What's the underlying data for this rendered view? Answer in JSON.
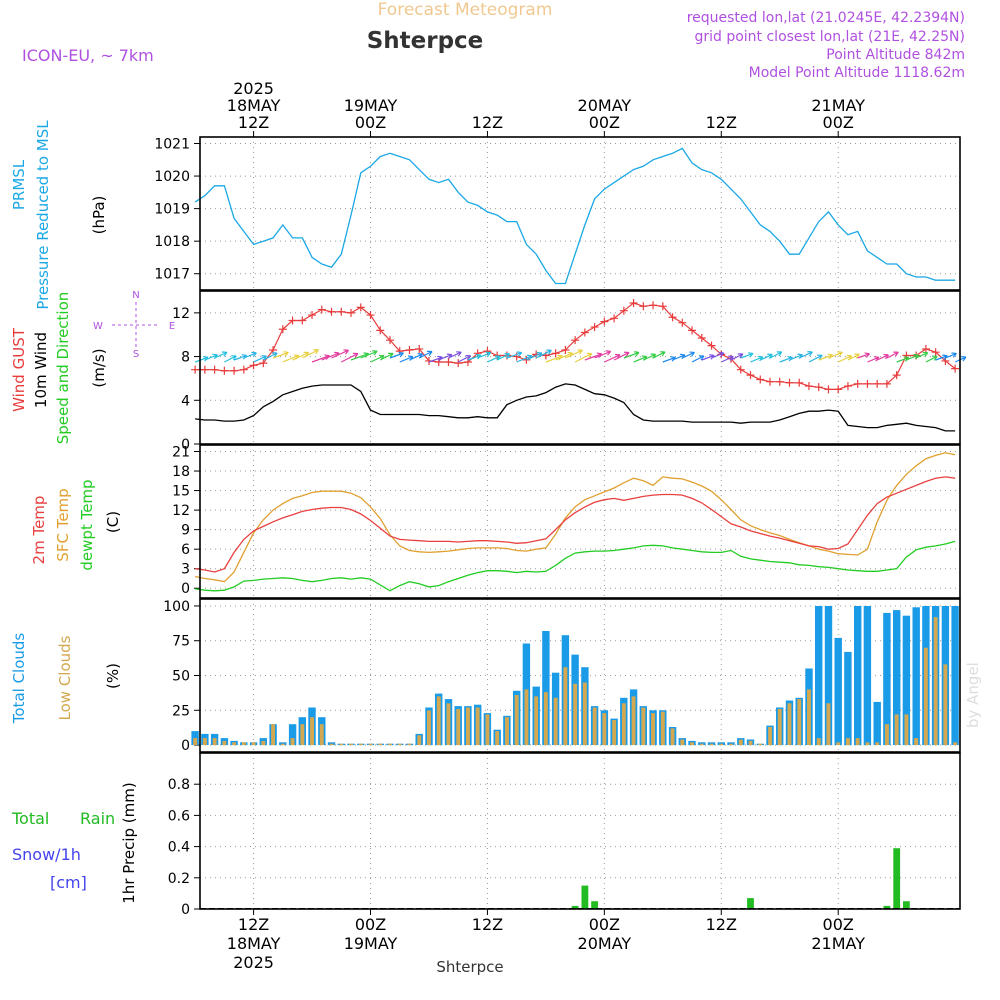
{
  "header": {
    "title": "Forecast Meteogram",
    "location": "Shterpce",
    "model": "ICON-EU, ~ 7km",
    "requested": "requested lon,lat (21.0245E, 42.2394N)",
    "grid_point": "grid point closest lon,lat (21E, 42.25N)",
    "point_altitude": "Point Altitude 842m",
    "model_altitude": "Model Point Altitude 1118.62m",
    "footer_location": "Shterpce",
    "watermark": "by Angel"
  },
  "time_axis": {
    "top_labels": [
      {
        "day_h": 6,
        "lines": [
          "2025",
          "18MAY",
          "12Z"
        ]
      },
      {
        "day_h": 18,
        "lines": [
          "19MAY",
          "00Z"
        ]
      },
      {
        "day_h": 30,
        "lines": [
          "12Z"
        ]
      },
      {
        "day_h": 42,
        "lines": [
          "20MAY",
          "00Z"
        ]
      },
      {
        "day_h": 54,
        "lines": [
          "12Z"
        ]
      },
      {
        "day_h": 66,
        "lines": [
          "21MAY",
          "00Z"
        ]
      }
    ],
    "bottom_labels": [
      {
        "day_h": 6,
        "lines": [
          "12Z",
          "18MAY",
          "2025"
        ]
      },
      {
        "day_h": 18,
        "lines": [
          "00Z",
          "19MAY"
        ]
      },
      {
        "day_h": 30,
        "lines": [
          "12Z"
        ]
      },
      {
        "day_h": 42,
        "lines": [
          "00Z",
          "20MAY"
        ]
      },
      {
        "day_h": 54,
        "lines": [
          "12Z"
        ]
      },
      {
        "day_h": 66,
        "lines": [
          "00Z",
          "21MAY"
        ]
      }
    ],
    "x_start_hour": 0.5,
    "x_end_hour": 78.5
  },
  "panels": {
    "pressure": {
      "labels": [
        "PRMSL",
        "Pressure Reduced to MSL"
      ],
      "unit": "(hPa)",
      "yticks": [
        1017,
        1018,
        1019,
        1020,
        1021
      ],
      "ylim": [
        1016.5,
        1021.2
      ]
    },
    "wind": {
      "labels": [
        "Wind GUST",
        "10m Wind",
        "Speed and Direction"
      ],
      "unit": "(m/s)",
      "compass": {
        "n": "N",
        "s": "S",
        "w": "W",
        "e": "E"
      },
      "yticks": [
        0,
        4,
        8,
        12
      ],
      "ylim": [
        0,
        14
      ]
    },
    "temperature": {
      "labels": [
        "2m Temp",
        "SFC Temp",
        "dewpt Temp"
      ],
      "unit": "(C)",
      "yticks": [
        0,
        3,
        6,
        9,
        12,
        15,
        18,
        21
      ],
      "ylim": [
        -1.5,
        22
      ]
    },
    "clouds": {
      "labels": [
        "Total Clouds",
        "Low Clouds"
      ],
      "unit": "(%)",
      "yticks": [
        0,
        25,
        50,
        75,
        100
      ],
      "ylim": [
        -5,
        105
      ]
    },
    "precip": {
      "labels": [
        "Total",
        "Rain",
        "Snow/1h",
        "[cm]"
      ],
      "ylabel": "1hr Precip (mm)",
      "yticks": [
        0,
        0.2,
        0.4,
        0.6,
        0.8
      ],
      "ylim": [
        0,
        1.0
      ]
    }
  },
  "colors": {
    "pressure": "#1aa8e6",
    "gust": "#e83c3c",
    "wind": "#000000",
    "temp2m": "#e84040",
    "sfc": "#e0a030",
    "dewpt": "#22cc22",
    "total_cloud": "#1a9be8",
    "low_cloud": "#d4a850",
    "rain": "#22bb22",
    "purple": "#b050e0",
    "snow": "#4444ee",
    "title": "#f0c890"
  },
  "chart_data": {
    "type": "line",
    "hours": [
      0,
      1,
      2,
      3,
      4,
      5,
      6,
      7,
      8,
      9,
      10,
      11,
      12,
      13,
      14,
      15,
      16,
      17,
      18,
      19,
      20,
      21,
      22,
      23,
      24,
      25,
      26,
      27,
      28,
      29,
      30,
      31,
      32,
      33,
      34,
      35,
      36,
      37,
      38,
      39,
      40,
      41,
      42,
      43,
      44,
      45,
      46,
      47,
      48,
      49,
      50,
      51,
      52,
      53,
      54,
      55,
      56,
      57,
      58,
      59,
      60,
      61,
      62,
      63,
      64,
      65,
      66,
      67,
      68,
      69,
      70,
      71,
      72,
      73,
      74,
      75,
      76,
      77,
      78
    ],
    "pressure_hpa": [
      1019.2,
      1019.4,
      1019.7,
      1019.7,
      1018.7,
      1018.3,
      1017.9,
      1018.0,
      1018.1,
      1018.5,
      1018.1,
      1018.1,
      1017.5,
      1017.3,
      1017.2,
      1017.6,
      1018.8,
      1020.1,
      1020.3,
      1020.6,
      1020.7,
      1020.6,
      1020.5,
      1020.2,
      1019.9,
      1019.8,
      1019.9,
      1019.5,
      1019.2,
      1019.1,
      1018.9,
      1018.8,
      1018.6,
      1018.6,
      1017.9,
      1017.6,
      1017.1,
      1016.7,
      1016.7,
      1017.6,
      1018.5,
      1019.3,
      1019.6,
      1019.8,
      1020.0,
      1020.2,
      1020.3,
      1020.5,
      1020.6,
      1020.7,
      1020.85,
      1020.4,
      1020.2,
      1020.1,
      1019.9,
      1019.6,
      1019.3,
      1018.9,
      1018.5,
      1018.3,
      1018.0,
      1017.6,
      1017.6,
      1018.1,
      1018.6,
      1018.9,
      1018.5,
      1018.2,
      1018.3,
      1017.7,
      1017.5,
      1017.3,
      1017.3,
      1017.0,
      1016.9,
      1016.9,
      1016.8,
      1016.8,
      1016.8
    ],
    "gust_ms": [
      6.8,
      6.8,
      6.8,
      6.7,
      6.7,
      6.8,
      7.2,
      7.4,
      8.6,
      10.5,
      11.3,
      11.3,
      11.8,
      12.3,
      12.1,
      12.1,
      12.0,
      12.5,
      11.8,
      10.4,
      9.5,
      8.5,
      8.6,
      8.7,
      7.6,
      7.5,
      7.5,
      7.4,
      7.5,
      8.3,
      8.5,
      8.1,
      8.1,
      8.0,
      7.7,
      8.2,
      8.1,
      8.3,
      8.6,
      9.5,
      10.2,
      10.7,
      11.2,
      11.5,
      12.2,
      12.9,
      12.6,
      12.7,
      12.6,
      11.6,
      11.1,
      10.4,
      9.7,
      9.0,
      8.2,
      7.8,
      6.8,
      6.3,
      5.9,
      5.7,
      5.7,
      5.6,
      5.6,
      5.3,
      5.2,
      5.0,
      5.0,
      5.3,
      5.5,
      5.5,
      5.5,
      5.5,
      6.3,
      8.1,
      8.1,
      8.7,
      8.4,
      7.6,
      6.9
    ],
    "wind_ms": [
      2.3,
      2.2,
      2.2,
      2.1,
      2.1,
      2.2,
      2.6,
      3.4,
      3.9,
      4.5,
      4.8,
      5.1,
      5.3,
      5.4,
      5.4,
      5.4,
      5.4,
      4.8,
      3.1,
      2.7,
      2.7,
      2.7,
      2.7,
      2.7,
      2.6,
      2.6,
      2.5,
      2.4,
      2.4,
      2.5,
      2.4,
      2.4,
      3.6,
      4.0,
      4.3,
      4.4,
      4.7,
      5.2,
      5.5,
      5.4,
      5.0,
      4.6,
      4.5,
      4.2,
      3.8,
      2.7,
      2.2,
      2.1,
      2.1,
      2.1,
      2.1,
      2.0,
      2.0,
      2.0,
      2.0,
      2.0,
      1.9,
      2.0,
      2.0,
      2.0,
      2.2,
      2.5,
      2.8,
      3.0,
      3.0,
      3.1,
      3.0,
      1.7,
      1.6,
      1.5,
      1.5,
      1.7,
      1.8,
      1.9,
      1.7,
      1.6,
      1.5,
      1.2,
      1.2
    ],
    "temp2m_c": [
      3.0,
      2.8,
      2.5,
      3.0,
      5.5,
      7.5,
      8.8,
      9.5,
      10.2,
      10.8,
      11.3,
      11.8,
      12.1,
      12.3,
      12.4,
      12.4,
      12.1,
      11.4,
      10.4,
      9.2,
      8.0,
      7.5,
      7.4,
      7.3,
      7.2,
      7.2,
      7.2,
      7.1,
      7.2,
      7.3,
      7.3,
      7.2,
      7.1,
      6.9,
      7.0,
      7.3,
      7.6,
      9.0,
      10.5,
      11.6,
      12.5,
      13.2,
      13.6,
      13.8,
      13.5,
      13.8,
      14.1,
      14.3,
      14.4,
      14.4,
      14.3,
      13.8,
      13.1,
      12.1,
      11.0,
      9.9,
      9.4,
      8.8,
      8.4,
      8.0,
      7.7,
      7.3,
      6.9,
      6.5,
      6.4,
      6.0,
      6.1,
      6.8,
      9.0,
      11.2,
      13.0,
      14.0,
      14.6,
      15.2,
      15.8,
      16.4,
      16.9,
      17.1,
      16.9
    ],
    "sfc_c": [
      1.8,
      1.5,
      1.3,
      1.0,
      2.5,
      5.5,
      8.5,
      10.5,
      12.0,
      13.0,
      13.8,
      14.2,
      14.7,
      14.9,
      14.9,
      14.9,
      14.6,
      13.9,
      12.5,
      10.7,
      8.2,
      6.5,
      5.8,
      5.6,
      5.5,
      5.6,
      5.7,
      5.9,
      6.1,
      6.2,
      6.2,
      6.2,
      6.1,
      5.8,
      5.7,
      6.0,
      6.2,
      8.3,
      10.8,
      12.5,
      13.6,
      14.2,
      14.8,
      15.4,
      16.2,
      16.9,
      16.5,
      15.8,
      17.1,
      16.9,
      16.8,
      16.3,
      15.7,
      14.9,
      13.6,
      12.1,
      10.5,
      9.6,
      9.0,
      8.5,
      8.1,
      7.5,
      7.0,
      6.5,
      6.0,
      5.7,
      5.3,
      5.2,
      5.1,
      6.0,
      10.2,
      13.5,
      15.8,
      17.5,
      18.8,
      19.9,
      20.4,
      20.8,
      20.5
    ],
    "dewpt_c": [
      -0.1,
      -0.3,
      -0.4,
      -0.3,
      0.2,
      1.1,
      1.2,
      1.4,
      1.5,
      1.6,
      1.5,
      1.2,
      1.0,
      1.2,
      1.5,
      1.6,
      1.4,
      1.6,
      1.4,
      0.5,
      -0.4,
      0.4,
      1.0,
      0.7,
      0.2,
      0.4,
      1.0,
      1.5,
      2.0,
      2.4,
      2.7,
      2.7,
      2.6,
      2.4,
      2.6,
      2.5,
      2.6,
      3.5,
      4.6,
      5.4,
      5.6,
      5.7,
      5.7,
      5.8,
      6.0,
      6.2,
      6.5,
      6.6,
      6.5,
      6.2,
      6.0,
      5.8,
      5.6,
      5.5,
      5.5,
      5.8,
      4.9,
      4.5,
      4.3,
      4.1,
      4.0,
      3.9,
      3.6,
      3.5,
      3.3,
      3.2,
      3.0,
      2.8,
      2.7,
      2.6,
      2.6,
      2.8,
      3.0,
      4.8,
      5.9,
      6.3,
      6.5,
      6.8,
      7.2
    ],
    "total_cloud_pct": [
      10,
      8,
      8,
      5,
      3,
      2,
      2,
      5,
      15,
      2,
      15,
      20,
      27,
      20,
      2,
      1,
      1,
      1,
      1,
      1,
      1,
      1,
      1,
      8,
      27,
      37,
      33,
      28,
      28,
      29,
      23,
      11,
      21,
      39,
      73,
      42,
      82,
      52,
      79,
      65,
      56,
      28,
      25,
      19,
      34,
      40,
      28,
      25,
      25,
      13,
      5,
      3,
      2,
      2,
      2,
      2,
      5,
      4,
      1,
      14,
      27,
      32,
      34,
      55,
      100,
      100,
      77,
      67,
      100,
      100,
      31,
      95,
      97,
      93,
      99,
      100,
      100,
      100,
      100
    ],
    "low_cloud_pct": [
      5,
      5,
      5,
      3,
      2,
      2,
      2,
      3,
      15,
      1,
      5,
      15,
      20,
      15,
      1,
      1,
      1,
      1,
      1,
      1,
      1,
      1,
      1,
      7,
      25,
      35,
      30,
      26,
      27,
      27,
      22,
      10,
      20,
      36,
      40,
      35,
      38,
      34,
      56,
      44,
      45,
      27,
      23,
      18,
      30,
      35,
      27,
      23,
      24,
      12,
      4,
      2,
      1,
      1,
      1,
      1,
      4,
      3,
      1,
      13,
      26,
      30,
      33,
      40,
      5,
      30,
      2,
      5,
      5,
      2,
      2,
      15,
      22,
      22,
      5,
      70,
      92,
      58,
      2
    ],
    "rain_mm": [
      0,
      0,
      0,
      0,
      0,
      0,
      0,
      0,
      0,
      0,
      0,
      0,
      0,
      0,
      0,
      0,
      0,
      0,
      0,
      0,
      0,
      0,
      0,
      0,
      0,
      0,
      0,
      0,
      0,
      0,
      0,
      0,
      0,
      0,
      0,
      0,
      0,
      0,
      0,
      0.02,
      0.15,
      0.05,
      0,
      0,
      0,
      0,
      0,
      0,
      0,
      0,
      0,
      0,
      0,
      0,
      0,
      0,
      0,
      0.07,
      0,
      0,
      0,
      0,
      0,
      0,
      0,
      0,
      0,
      0,
      0,
      0,
      0,
      0.02,
      0.39,
      0.05,
      0,
      0,
      0,
      0,
      0
    ]
  }
}
